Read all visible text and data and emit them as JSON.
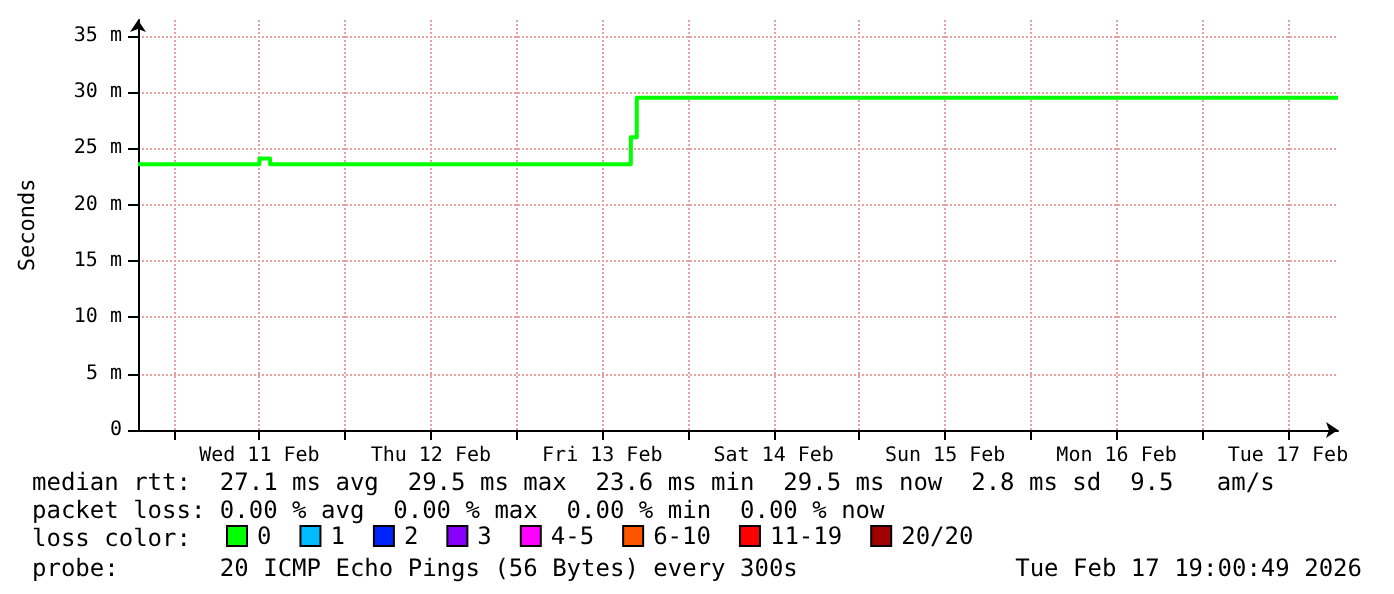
{
  "chart_data": {
    "type": "step",
    "ylabel": "Seconds",
    "legend_title": "loss color:",
    "legend": "bottom",
    "grid": true,
    "xlim": [
      "2026-02-10T19:00",
      "2026-02-17T19:00"
    ],
    "xticks": [
      {
        "value": "2026-02-11T00:00",
        "label": null
      },
      {
        "value": "2026-02-11T12:00",
        "label": "Wed 11 Feb"
      },
      {
        "value": "2026-02-12T00:00",
        "label": null
      },
      {
        "value": "2026-02-12T12:00",
        "label": "Thu 12 Feb"
      },
      {
        "value": "2026-02-13T00:00",
        "label": null
      },
      {
        "value": "2026-02-13T12:00",
        "label": "Fri 13 Feb"
      },
      {
        "value": "2026-02-14T00:00",
        "label": null
      },
      {
        "value": "2026-02-14T12:00",
        "label": "Sat 14 Feb"
      },
      {
        "value": "2026-02-15T00:00",
        "label": null
      },
      {
        "value": "2026-02-15T12:00",
        "label": "Sun 15 Feb"
      },
      {
        "value": "2026-02-16T00:00",
        "label": null
      },
      {
        "value": "2026-02-16T12:00",
        "label": "Mon 16 Feb"
      },
      {
        "value": "2026-02-17T00:00",
        "label": null
      },
      {
        "value": "2026-02-17T12:00",
        "label": "Tue 17 Feb"
      }
    ],
    "ylim": [
      0,
      36.4
    ],
    "yticks": [
      0,
      {
        "value": 5,
        "label": "5 m"
      },
      {
        "value": 10,
        "label": "10 m"
      },
      {
        "value": 15,
        "label": "15 m"
      },
      {
        "value": 20,
        "label": "20 m"
      },
      {
        "value": 25,
        "label": "25 m"
      },
      {
        "value": 30,
        "label": "30 m"
      },
      {
        "value": 35,
        "label": "35 m"
      }
    ],
    "x": [
      "2026-02-10T19:00",
      "2026-02-11T12:00",
      "2026-02-11T13:30",
      "2026-02-13T16:00",
      "2026-02-13T16:50",
      "2026-02-14T22:00",
      "2026-02-14T22:50",
      "2026-02-17T19:00"
    ],
    "series": [
      {
        "name": "0",
        "color": "#00ff00",
        "values": [
          23.6,
          24.1,
          23.6,
          26.0,
          29.5,
          29.5,
          29.5,
          29.5
        ]
      },
      {
        "name": "1",
        "color": "#00bbff",
        "values": [
          null,
          null,
          null,
          null,
          null,
          null,
          null,
          null
        ]
      },
      {
        "name": "2",
        "color": "#0022ff",
        "values": [
          null,
          null,
          null,
          null,
          null,
          null,
          null,
          null
        ]
      },
      {
        "name": "3",
        "color": "#8a00ff",
        "values": [
          null,
          null,
          null,
          null,
          null,
          null,
          null,
          null
        ]
      },
      {
        "name": "4-5",
        "color": "#ff00ff",
        "values": [
          null,
          null,
          null,
          null,
          null,
          null,
          null,
          null
        ]
      },
      {
        "name": "6-10",
        "color": "#ff5500",
        "values": [
          null,
          null,
          null,
          null,
          null,
          null,
          null,
          null
        ]
      },
      {
        "name": "11-19",
        "color": "#ff0000",
        "values": [
          null,
          null,
          null,
          null,
          null,
          null,
          null,
          null
        ]
      },
      {
        "name": "20/20",
        "color": "#a10000",
        "values": [
          null,
          null,
          null,
          null,
          null,
          null,
          null,
          null
        ]
      }
    ],
    "annotations": [
      "median rtt:  27.1 ms avg  29.5 ms max  23.6 ms min  29.5 ms now  2.8 ms sd  9.5   am/s",
      "packet loss: 0.00 % avg  0.00 % max  0.00 % min  0.00 % now",
      "probe:       20 ICMP Echo Pings (56 Bytes) every 300s",
      "Tue Feb 17 19:00:49 2026"
    ]
  }
}
